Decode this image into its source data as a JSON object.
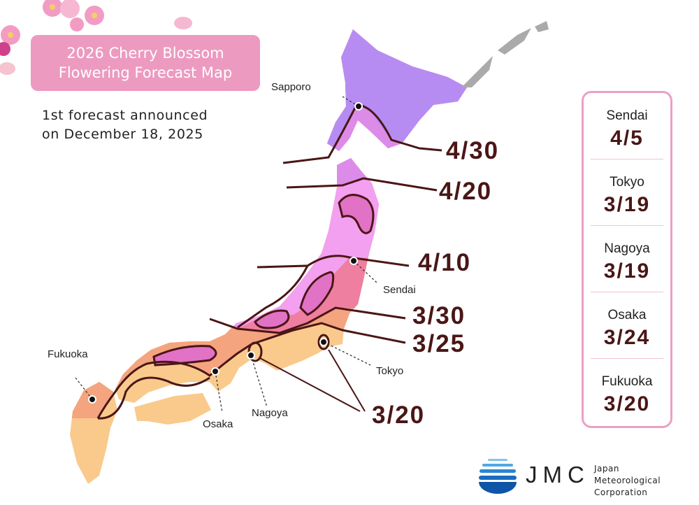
{
  "title": {
    "line1": "2026 Cherry Blossom",
    "line2": "Flowering Forecast Map"
  },
  "subtitle": {
    "line1": "1st forecast announced",
    "line2": "on December 18, 2025"
  },
  "cities": {
    "sapporo": "Sapporo",
    "sendai": "Sendai",
    "tokyo": "Tokyo",
    "nagoya": "Nagoya",
    "osaka": "Osaka",
    "fukuoka": "Fukuoka"
  },
  "isolines": [
    "4/30",
    "4/20",
    "4/10",
    "3/30",
    "3/25",
    "3/20"
  ],
  "panel": [
    {
      "city": "Sendai",
      "date": "4/5"
    },
    {
      "city": "Tokyo",
      "date": "3/19"
    },
    {
      "city": "Nagoya",
      "date": "3/19"
    },
    {
      "city": "Osaka",
      "date": "3/24"
    },
    {
      "city": "Fukuoka",
      "date": "3/20"
    }
  ],
  "logo": {
    "mark": "JMC",
    "line1": "Japan Meteorological",
    "line2": "Corporation"
  },
  "colors": {
    "title_bg": "#ec9ac0",
    "isoline": "#4a1616",
    "zone_4_30": "#b78cf2",
    "zone_4_20": "#dc8ce8",
    "zone_4_10": "#f3a0f0",
    "zone_3_30": "#ee7fa0",
    "zone_3_25": "#f4a47e",
    "zone_3_20": "#f9ca8c",
    "highland": "#e272c6"
  }
}
